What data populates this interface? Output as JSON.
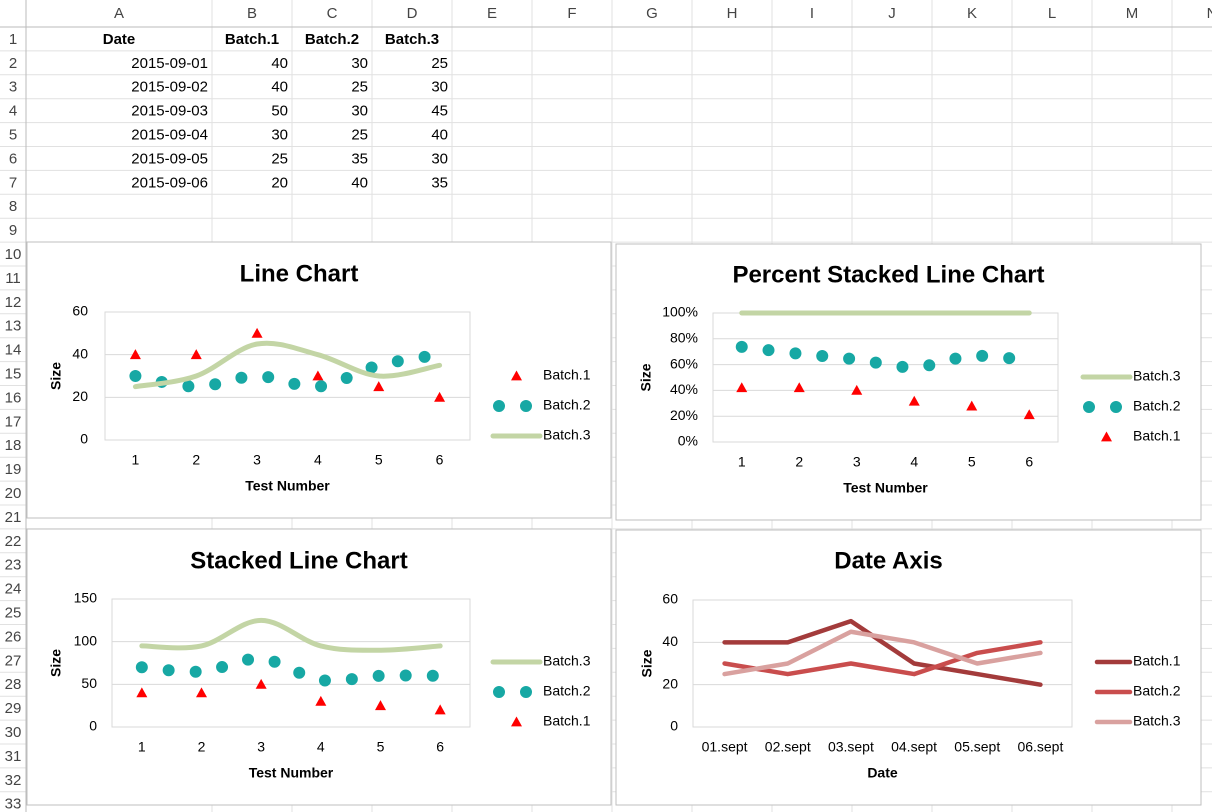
{
  "sheet": {
    "columns": [
      "A",
      "B",
      "C",
      "D",
      "E",
      "F",
      "G",
      "H",
      "I",
      "J",
      "K",
      "L",
      "M",
      "N"
    ],
    "rows": [
      1,
      2,
      3,
      4,
      5,
      6,
      7,
      8,
      9,
      10,
      11,
      12,
      13,
      14,
      15,
      16,
      17,
      18,
      19,
      20,
      21,
      22,
      23,
      24,
      25,
      26,
      27,
      28,
      29,
      30,
      31,
      32,
      33
    ],
    "table": {
      "header": [
        "Date",
        "Batch.1",
        "Batch.2",
        "Batch.3"
      ],
      "rows": [
        [
          "2015-09-01",
          40,
          30,
          25
        ],
        [
          "2015-09-02",
          40,
          25,
          30
        ],
        [
          "2015-09-03",
          50,
          30,
          45
        ],
        [
          "2015-09-04",
          30,
          25,
          40
        ],
        [
          "2015-09-05",
          25,
          35,
          30
        ],
        [
          "2015-09-06",
          20,
          40,
          35
        ]
      ]
    }
  },
  "chart_data": [
    {
      "type": "line",
      "title": "Line Chart",
      "stacking": "none",
      "x_label": "Test Number",
      "y_label": "Size",
      "categories": [
        1,
        2,
        3,
        4,
        5,
        6
      ],
      "ylim": [
        0,
        60
      ],
      "yticks": [
        0,
        20,
        40,
        60
      ],
      "grid": true,
      "legend": "right",
      "legend_reversed": false,
      "series": [
        {
          "name": "Batch.1",
          "color": "#ff0000",
          "style": "markers",
          "smooth": false,
          "values": [
            40,
            40,
            50,
            30,
            25,
            20
          ]
        },
        {
          "name": "Batch.2",
          "color": "#17a8a4",
          "style": "dots",
          "smooth": true,
          "values": [
            30,
            25,
            30,
            25,
            35,
            40
          ]
        },
        {
          "name": "Batch.3",
          "color": "#c3d5a5",
          "style": "line",
          "smooth": true,
          "values": [
            25,
            30,
            45,
            40,
            30,
            35
          ]
        }
      ]
    },
    {
      "type": "line",
      "title": "Percent Stacked Line Chart",
      "stacking": "percent",
      "x_label": "Test Number",
      "y_label": "Size",
      "categories": [
        1,
        2,
        3,
        4,
        5,
        6
      ],
      "ylim": [
        0,
        100
      ],
      "yticks": [
        {
          "value": 0,
          "label": "0%"
        },
        {
          "value": 20,
          "label": "20%"
        },
        {
          "value": 40,
          "label": "40%"
        },
        {
          "value": 60,
          "label": "60%"
        },
        {
          "value": 80,
          "label": "80%"
        },
        {
          "value": 100,
          "label": "100%"
        }
      ],
      "grid": true,
      "legend": "right",
      "legend_reversed": true,
      "series": [
        {
          "name": "Batch.1",
          "color": "#ff0000",
          "style": "markers",
          "smooth": false,
          "values": [
            42.1,
            42.1,
            40,
            31.6,
            27.8,
            21.1
          ]
        },
        {
          "name": "Batch.2",
          "color": "#17a8a4",
          "style": "dots",
          "smooth": true,
          "values": [
            31.6,
            26.3,
            24,
            26.3,
            38.9,
            42.1
          ]
        },
        {
          "name": "Batch.3",
          "color": "#c3d5a5",
          "style": "line",
          "smooth": true,
          "values": [
            26.3,
            31.6,
            36,
            42.1,
            33.3,
            36.8
          ]
        }
      ]
    },
    {
      "type": "line",
      "title": "Stacked Line Chart",
      "stacking": "stacked",
      "x_label": "Test Number",
      "y_label": "Size",
      "categories": [
        1,
        2,
        3,
        4,
        5,
        6
      ],
      "ylim": [
        0,
        150
      ],
      "yticks": [
        0,
        50,
        100,
        150
      ],
      "grid": true,
      "legend": "right",
      "legend_reversed": true,
      "series": [
        {
          "name": "Batch.1",
          "color": "#ff0000",
          "style": "markers",
          "smooth": false,
          "values": [
            40,
            40,
            50,
            30,
            25,
            20
          ]
        },
        {
          "name": "Batch.2",
          "color": "#17a8a4",
          "style": "dots",
          "smooth": true,
          "values": [
            30,
            25,
            30,
            25,
            35,
            40
          ]
        },
        {
          "name": "Batch.3",
          "color": "#c3d5a5",
          "style": "line",
          "smooth": true,
          "values": [
            25,
            30,
            45,
            40,
            30,
            35
          ]
        }
      ]
    },
    {
      "type": "line",
      "title": "Date Axis",
      "stacking": "none",
      "x_label": "Date",
      "y_label": "Size",
      "categories": [
        "01.sept",
        "02.sept",
        "03.sept",
        "04.sept",
        "05.sept",
        "06.sept"
      ],
      "ylim": [
        0,
        60
      ],
      "yticks": [
        0,
        20,
        40,
        60
      ],
      "grid": true,
      "legend": "right",
      "legend_reversed": false,
      "series": [
        {
          "name": "Batch.1",
          "color": "#a33b3b",
          "style": "line",
          "smooth": false,
          "values": [
            40,
            40,
            50,
            30,
            25,
            20
          ]
        },
        {
          "name": "Batch.2",
          "color": "#c94d4d",
          "style": "line",
          "smooth": false,
          "values": [
            30,
            25,
            30,
            25,
            35,
            40
          ]
        },
        {
          "name": "Batch.3",
          "color": "#d9a19f",
          "style": "line",
          "smooth": false,
          "values": [
            25,
            30,
            45,
            40,
            30,
            35
          ]
        }
      ]
    }
  ]
}
